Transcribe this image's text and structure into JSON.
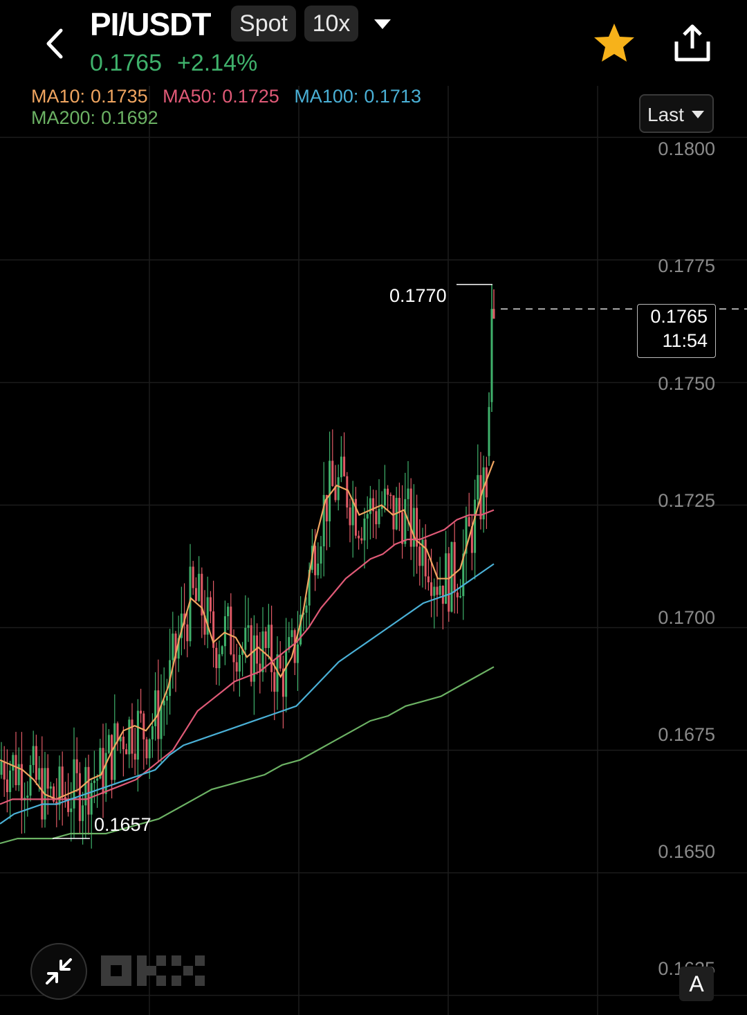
{
  "header": {
    "pair": "PI/USDT",
    "market_type": "Spot",
    "leverage": "10x",
    "last_price": "0.1765",
    "change_pct": "+2.14%",
    "colors": {
      "up": "#3fb16b",
      "down": "#e05a66",
      "favorite": "#f7b21a"
    },
    "icons": {
      "back": "chevron-left-icon",
      "dropdown": "caret-down-icon",
      "favorite": "star-icon",
      "share": "share-icon"
    }
  },
  "indicators": {
    "ma10": {
      "label": "MA10:",
      "value": "0.1735",
      "color": "#f0a560"
    },
    "ma50": {
      "label": "MA50:",
      "value": "0.1725",
      "color": "#e05a77"
    },
    "ma100": {
      "label": "MA100:",
      "value": "0.1713",
      "color": "#4ab0d6"
    },
    "ma200": {
      "label": "MA200:",
      "value": "0.1692",
      "color": "#6cb264"
    }
  },
  "controls": {
    "price_type": "Last",
    "auto_scale": "A",
    "collapse_icon": "collapse-arrows-icon",
    "watermark": "OKX"
  },
  "price_tag": {
    "price": "0.1765",
    "countdown": "11:54"
  },
  "chart_data": {
    "type": "candlestick",
    "y_ticks": [
      "0.1800",
      "0.1775",
      "0.1750",
      "0.1725",
      "0.1700",
      "0.1675",
      "0.1650",
      "0.1625"
    ],
    "ylim": [
      0.1621,
      0.18105
    ],
    "high_label": "0.1770",
    "low_label": "0.1657",
    "last_price": 0.1765,
    "grid": true,
    "ma_lines": {
      "ma10": [
        0.1673,
        0.1672,
        0.1671,
        0.1669,
        0.1666,
        0.1665,
        0.1666,
        0.1667,
        0.1669,
        0.167,
        0.1675,
        0.1679,
        0.168,
        0.1679,
        0.1682,
        0.1688,
        0.1698,
        0.1706,
        0.1704,
        0.1697,
        0.1699,
        0.1698,
        0.1694,
        0.1696,
        0.1694,
        0.169,
        0.1694,
        0.1703,
        0.1717,
        0.1726,
        0.1729,
        0.1728,
        0.1723,
        0.1724,
        0.1725,
        0.1723,
        0.1724,
        0.1718,
        0.1716,
        0.171,
        0.171,
        0.1712,
        0.172,
        0.1728,
        0.1734
      ],
      "ma50": [
        0.1664,
        0.1665,
        0.1665,
        0.1665,
        0.1665,
        0.1665,
        0.1665,
        0.1665,
        0.1666,
        0.1667,
        0.1668,
        0.1669,
        0.1671,
        0.1673,
        0.1675,
        0.1679,
        0.1683,
        0.1685,
        0.1687,
        0.1689,
        0.169,
        0.1691,
        0.1693,
        0.1695,
        0.1697,
        0.17,
        0.1704,
        0.1707,
        0.171,
        0.1712,
        0.1714,
        0.1715,
        0.1717,
        0.1718,
        0.1718,
        0.1719,
        0.172,
        0.1722,
        0.1723,
        0.1723,
        0.1724
      ],
      "ma100": [
        0.166,
        0.1662,
        0.1663,
        0.1664,
        0.1664,
        0.1665,
        0.1666,
        0.1667,
        0.1668,
        0.1669,
        0.167,
        0.1671,
        0.1674,
        0.1676,
        0.1677,
        0.1678,
        0.1679,
        0.168,
        0.1681,
        0.1682,
        0.1683,
        0.1684,
        0.1687,
        0.169,
        0.1693,
        0.1695,
        0.1697,
        0.1699,
        0.1701,
        0.1703,
        0.1705,
        0.1706,
        0.1707,
        0.1709,
        0.1711,
        0.1713
      ],
      "ma200": [
        0.1656,
        0.1657,
        0.1657,
        0.1657,
        0.1658,
        0.1658,
        0.1658,
        0.1659,
        0.166,
        0.1661,
        0.1663,
        0.1665,
        0.1667,
        0.1668,
        0.1669,
        0.167,
        0.1672,
        0.1673,
        0.1675,
        0.1677,
        0.1679,
        0.1681,
        0.1682,
        0.1684,
        0.1685,
        0.1686,
        0.1688,
        0.169,
        0.1692
      ]
    }
  }
}
